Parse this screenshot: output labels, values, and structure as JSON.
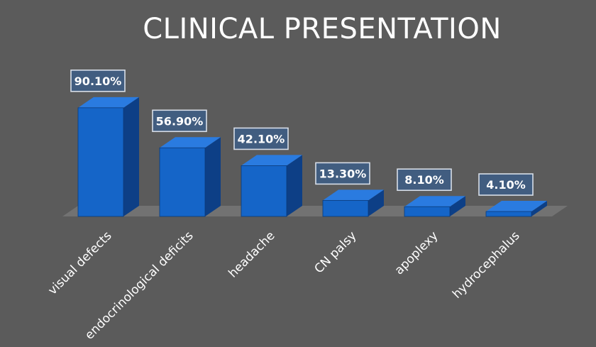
{
  "chart_data": {
    "type": "bar",
    "title": "CLINICAL PRESENTATION",
    "categories": [
      "visual defects",
      "endocrinological deficits",
      "headache",
      "CN palsy",
      "apoplexy",
      "hydrocephalus"
    ],
    "values": [
      90.1,
      56.9,
      42.1,
      13.3,
      8.1,
      4.1
    ],
    "value_labels": [
      "90.10%",
      "56.90%",
      "42.10%",
      "13.30%",
      "8.10%",
      "4.10%"
    ],
    "ylim": [
      0,
      100
    ],
    "grid": false,
    "legend": "none",
    "colors": {
      "bar_front": "#1565c8",
      "bar_side": "#0d3f86",
      "bar_top": "#2a7be0",
      "floor": "#777777",
      "background": "#5b5b5b"
    }
  }
}
